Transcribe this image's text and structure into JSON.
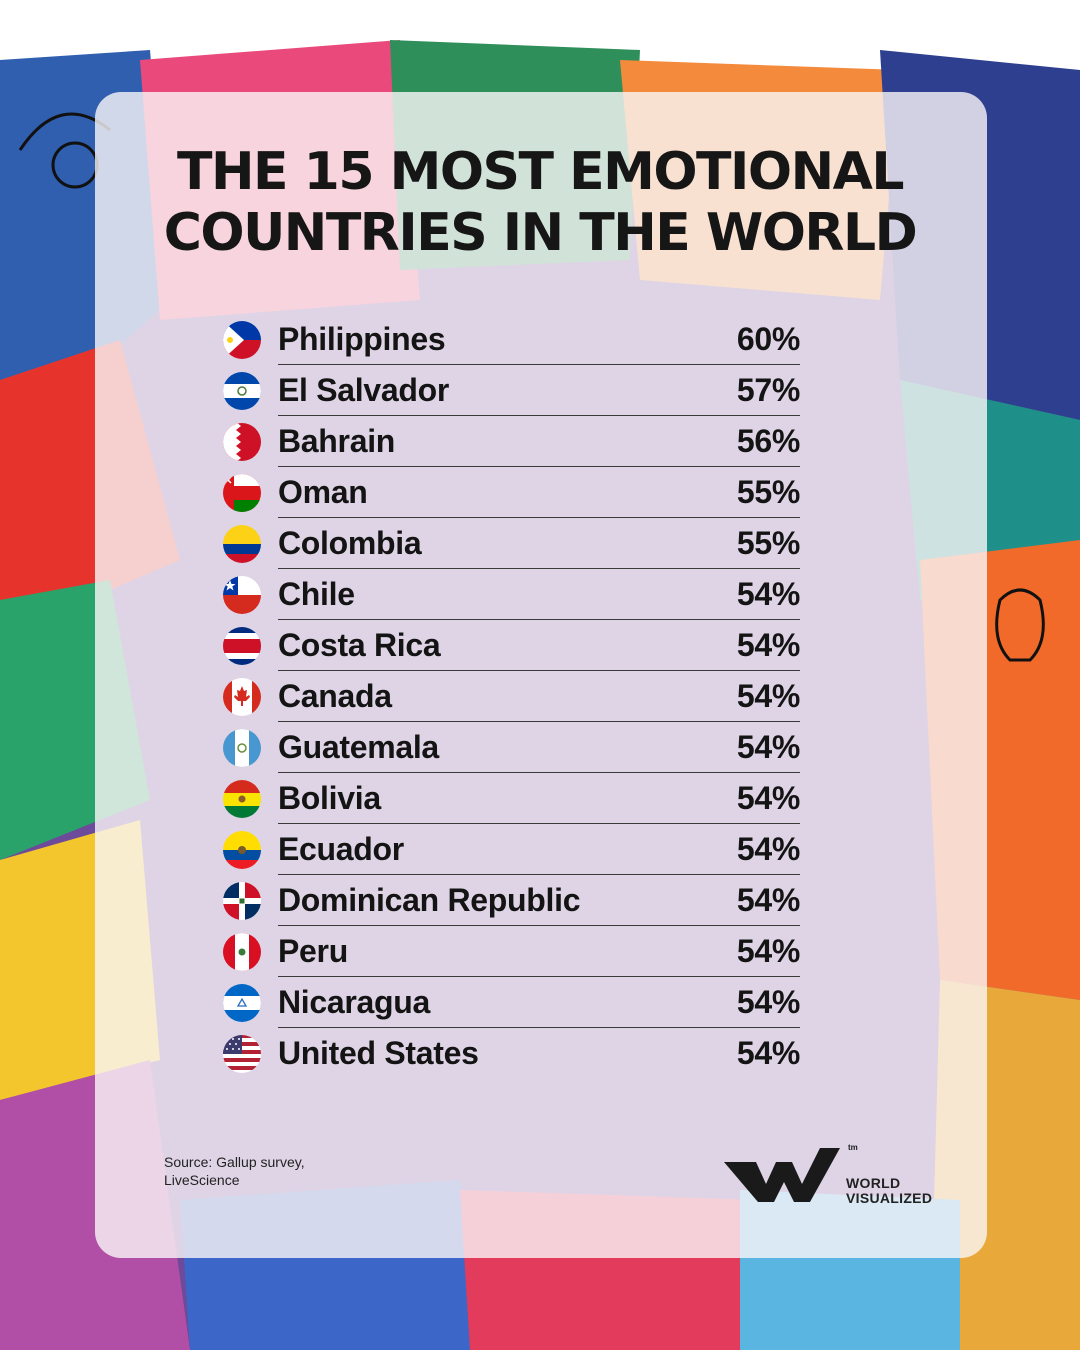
{
  "chart_data": {
    "type": "table",
    "title": "THE 15 MOST EMOTIONAL COUNTRIES IN THE WORLD",
    "title_lines": [
      "THE 15 MOST EMOTIONAL",
      "COUNTRIES IN THE WORLD"
    ],
    "rows": [
      {
        "country": "Philippines",
        "value": "60%",
        "flag": "philippines-flag-icon"
      },
      {
        "country": "El Salvador",
        "value": "57%",
        "flag": "el-salvador-flag-icon"
      },
      {
        "country": "Bahrain",
        "value": "56%",
        "flag": "bahrain-flag-icon"
      },
      {
        "country": "Oman",
        "value": "55%",
        "flag": "oman-flag-icon"
      },
      {
        "country": "Colombia",
        "value": "55%",
        "flag": "colombia-flag-icon"
      },
      {
        "country": "Chile",
        "value": "54%",
        "flag": "chile-flag-icon"
      },
      {
        "country": "Costa Rica",
        "value": "54%",
        "flag": "costa-rica-flag-icon"
      },
      {
        "country": "Canada",
        "value": "54%",
        "flag": "canada-flag-icon"
      },
      {
        "country": "Guatemala",
        "value": "54%",
        "flag": "guatemala-flag-icon"
      },
      {
        "country": "Bolivia",
        "value": "54%",
        "flag": "bolivia-flag-icon"
      },
      {
        "country": "Ecuador",
        "value": "54%",
        "flag": "ecuador-flag-icon"
      },
      {
        "country": "Dominican Republic",
        "value": "54%",
        "flag": "dominican-republic-flag-icon"
      },
      {
        "country": "Peru",
        "value": "54%",
        "flag": "peru-flag-icon"
      },
      {
        "country": "Nicaragua",
        "value": "54%",
        "flag": "nicaragua-flag-icon"
      },
      {
        "country": "United States",
        "value": "54%",
        "flag": "united-states-flag-icon"
      }
    ]
  },
  "source": {
    "lines": [
      "Source: Gallup survey,",
      "LiveScience"
    ]
  },
  "brand": {
    "mark": "tm",
    "lines": [
      "WORLD",
      "VISUALIZED"
    ]
  },
  "colors": {
    "text": "#141414",
    "card": "#faf6f8"
  }
}
